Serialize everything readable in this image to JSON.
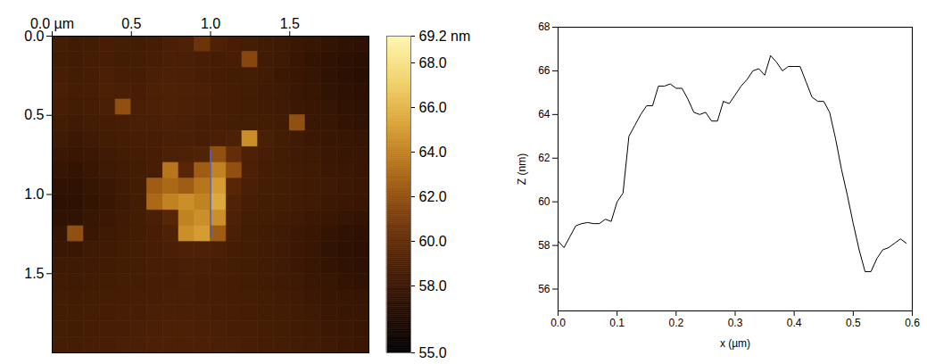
{
  "chart_data": [
    {
      "type": "heatmap",
      "xlim": [
        0,
        2
      ],
      "ylim": [
        0,
        2
      ],
      "xticks": [
        {
          "value": 0,
          "label": "0.0 µm"
        },
        {
          "value": 0.5,
          "label": "0.5"
        },
        {
          "value": 1,
          "label": "1.0"
        },
        {
          "value": 1.5,
          "label": "1.5"
        }
      ],
      "yticks": [
        {
          "value": 0,
          "label": "0.0"
        },
        {
          "value": 0.5,
          "label": "0.5"
        },
        {
          "value": 1,
          "label": "1.0"
        },
        {
          "value": 1.5,
          "label": "1.5"
        }
      ],
      "cells": [
        [
          58.6,
          58.4,
          58.5,
          58.7,
          58.6,
          58.5,
          58.6,
          58.8,
          59.0,
          60.5,
          59.0,
          58.7,
          58.6,
          58.4,
          58.2,
          58.0,
          57.8,
          57.6,
          57.4,
          57.3
        ],
        [
          58.5,
          58.4,
          58.6,
          58.7,
          58.5,
          58.6,
          58.7,
          58.8,
          58.8,
          58.7,
          58.6,
          58.7,
          61.5,
          58.4,
          58.2,
          57.9,
          57.6,
          57.4,
          57.2,
          57.1
        ],
        [
          58.7,
          58.5,
          58.6,
          58.8,
          58.7,
          58.6,
          58.8,
          58.9,
          58.8,
          58.7,
          58.6,
          58.5,
          58.6,
          58.4,
          58.1,
          57.9,
          57.7,
          57.4,
          57.2,
          57.0
        ],
        [
          58.8,
          58.6,
          58.7,
          58.9,
          58.8,
          58.7,
          58.9,
          59.0,
          58.9,
          58.8,
          58.7,
          58.6,
          58.5,
          58.3,
          58.2,
          58.0,
          57.8,
          57.5,
          57.3,
          57.2
        ],
        [
          58.7,
          58.5,
          58.6,
          58.8,
          62.0,
          58.8,
          58.9,
          59.0,
          58.9,
          58.8,
          58.7,
          58.6,
          58.5,
          58.4,
          58.3,
          58.1,
          57.9,
          57.7,
          57.5,
          57.4
        ],
        [
          58.5,
          58.3,
          58.5,
          58.6,
          58.7,
          58.8,
          58.8,
          58.9,
          58.8,
          58.7,
          58.7,
          58.6,
          58.6,
          58.5,
          58.4,
          62.0,
          58.0,
          57.8,
          57.6,
          57.5
        ],
        [
          58.3,
          58.1,
          58.3,
          58.5,
          58.6,
          58.7,
          58.7,
          58.8,
          58.8,
          58.7,
          58.8,
          59.0,
          64.5,
          58.8,
          58.5,
          58.3,
          58.1,
          57.9,
          57.8,
          57.7
        ],
        [
          58.0,
          57.9,
          58.1,
          58.3,
          58.5,
          58.6,
          58.7,
          58.9,
          59.0,
          59.2,
          62.0,
          60.0,
          59.0,
          58.7,
          58.5,
          58.3,
          58.2,
          58.0,
          57.9,
          57.8
        ],
        [
          57.7,
          57.6,
          57.9,
          58.2,
          58.4,
          58.5,
          58.7,
          63.5,
          59.5,
          62.5,
          64.0,
          62.0,
          58.9,
          58.6,
          58.5,
          58.4,
          58.3,
          58.1,
          58.0,
          57.9
        ],
        [
          57.4,
          57.4,
          57.7,
          58.0,
          58.3,
          58.5,
          62.5,
          63.0,
          62.5,
          63.5,
          65.0,
          59.5,
          58.8,
          58.6,
          58.5,
          58.4,
          58.3,
          58.2,
          58.1,
          58.0
        ],
        [
          57.2,
          57.3,
          57.6,
          57.9,
          58.2,
          58.5,
          63.0,
          64.0,
          64.5,
          64.0,
          65.5,
          59.2,
          58.7,
          58.5,
          58.5,
          58.4,
          58.3,
          58.1,
          58.0,
          57.9
        ],
        [
          57.4,
          57.5,
          57.8,
          58.1,
          58.3,
          58.5,
          58.8,
          59.5,
          64.0,
          64.5,
          64.5,
          59.0,
          58.6,
          58.5,
          58.4,
          58.3,
          58.1,
          57.9,
          57.7,
          57.6
        ],
        [
          57.7,
          62.0,
          58.0,
          58.2,
          58.4,
          58.5,
          58.7,
          59.0,
          64.5,
          65.0,
          62.5,
          58.8,
          58.5,
          58.4,
          58.3,
          58.1,
          57.9,
          57.6,
          57.4,
          57.3
        ],
        [
          58.0,
          58.0,
          58.2,
          58.3,
          58.5,
          58.6,
          58.7,
          58.8,
          59.0,
          59.0,
          58.8,
          58.6,
          58.5,
          58.4,
          58.3,
          58.1,
          57.8,
          57.5,
          57.3,
          57.2
        ],
        [
          58.2,
          58.2,
          58.3,
          58.4,
          58.5,
          58.6,
          58.7,
          58.7,
          58.8,
          58.8,
          58.7,
          58.6,
          58.5,
          58.4,
          58.3,
          58.1,
          57.8,
          57.6,
          57.4,
          57.3
        ],
        [
          58.4,
          58.3,
          58.4,
          58.5,
          58.6,
          58.6,
          58.7,
          58.7,
          58.8,
          58.7,
          58.7,
          58.6,
          58.5,
          58.4,
          58.3,
          58.2,
          58.0,
          57.8,
          57.6,
          57.5
        ],
        [
          58.5,
          58.4,
          58.5,
          58.6,
          58.6,
          58.7,
          58.7,
          58.8,
          58.8,
          58.7,
          58.7,
          58.6,
          58.6,
          58.5,
          58.4,
          58.3,
          58.1,
          57.9,
          57.8,
          57.7
        ],
        [
          58.5,
          58.5,
          58.6,
          58.6,
          58.7,
          58.7,
          58.8,
          58.8,
          58.8,
          58.8,
          58.7,
          58.7,
          58.6,
          58.5,
          58.5,
          58.4,
          58.2,
          58.0,
          57.9,
          57.8
        ],
        [
          58.6,
          58.5,
          58.6,
          58.7,
          58.7,
          58.8,
          58.8,
          58.9,
          58.9,
          58.8,
          58.8,
          58.7,
          58.7,
          58.6,
          58.5,
          58.4,
          58.3,
          58.1,
          58.0,
          57.9
        ],
        [
          58.6,
          58.6,
          58.7,
          58.7,
          58.8,
          58.8,
          58.9,
          58.9,
          58.9,
          58.9,
          58.8,
          58.8,
          58.7,
          58.6,
          58.6,
          58.5,
          58.4,
          58.2,
          58.1,
          58.0
        ]
      ],
      "colorbar": {
        "range": [
          55,
          69.2
        ],
        "ticks": [
          {
            "value": 55,
            "label": "55.0"
          },
          {
            "value": 58,
            "label": "58.0"
          },
          {
            "value": 60,
            "label": "60.0"
          },
          {
            "value": 62,
            "label": "62.0"
          },
          {
            "value": 64,
            "label": "64.0"
          },
          {
            "value": 66,
            "label": "66.0"
          },
          {
            "value": 68,
            "label": "68.0"
          },
          {
            "value": 69.2,
            "label": "69.2 nm"
          }
        ]
      },
      "profile_line": {
        "x": [
          1.0,
          1.0
        ],
        "y": [
          0.72,
          1.27
        ],
        "color": "#4a5bd0"
      }
    },
    {
      "type": "line",
      "xlabel": "x (µm)",
      "ylabel": "Z (nm)",
      "xlim": [
        0,
        0.6
      ],
      "ylim": [
        55,
        68
      ],
      "xticks": [
        {
          "value": 0,
          "label": "0.0"
        },
        0.1,
        0.2,
        0.3,
        0.4,
        0.5,
        0.6
      ],
      "yticks": [
        56,
        58,
        60,
        62,
        64,
        66,
        68
      ],
      "color": "#000000",
      "x": [
        0,
        0.01,
        0.02,
        0.03,
        0.04,
        0.05,
        0.06,
        0.07,
        0.08,
        0.09,
        0.1,
        0.11,
        0.12,
        0.13,
        0.14,
        0.15,
        0.16,
        0.17,
        0.18,
        0.19,
        0.2,
        0.21,
        0.22,
        0.23,
        0.24,
        0.25,
        0.26,
        0.27,
        0.28,
        0.29,
        0.3,
        0.31,
        0.32,
        0.33,
        0.34,
        0.35,
        0.36,
        0.37,
        0.38,
        0.39,
        0.4,
        0.41,
        0.42,
        0.43,
        0.44,
        0.45,
        0.46,
        0.47,
        0.48,
        0.49,
        0.5,
        0.51,
        0.52,
        0.53,
        0.54,
        0.55,
        0.56,
        0.57,
        0.58,
        0.59
      ],
      "values": [
        58.2,
        57.9,
        58.4,
        58.9,
        59.0,
        59.05,
        59.0,
        59.0,
        59.2,
        59.1,
        60.0,
        60.4,
        63.0,
        63.5,
        64.0,
        64.4,
        64.4,
        65.3,
        65.3,
        65.4,
        65.2,
        65.2,
        64.7,
        64.1,
        64.0,
        64.1,
        63.7,
        63.7,
        64.6,
        64.5,
        64.9,
        65.3,
        65.6,
        66.0,
        66.1,
        65.8,
        66.7,
        66.4,
        66.0,
        66.2,
        66.2,
        66.2,
        65.5,
        64.8,
        64.6,
        64.6,
        64.1,
        62.9,
        61.5,
        60.3,
        59.0,
        57.8,
        56.8,
        56.8,
        57.4,
        57.8,
        57.9,
        58.1,
        58.3,
        58.1
      ]
    }
  ]
}
